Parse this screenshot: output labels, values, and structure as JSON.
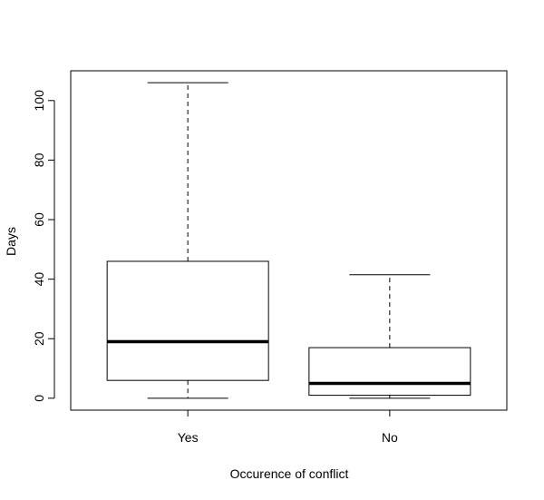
{
  "chart_data": {
    "type": "boxplot",
    "title": "",
    "xlabel": "Occurence of conflict",
    "ylabel": "Days",
    "categories": [
      "Yes",
      "No"
    ],
    "ylim": [
      -4,
      110
    ],
    "yticks": [
      0,
      20,
      40,
      60,
      80,
      100
    ],
    "boxes": [
      {
        "category": "Yes",
        "min": 0,
        "q1": 6,
        "median": 19,
        "q3": 46,
        "max": 106
      },
      {
        "category": "No",
        "min": 0,
        "q1": 1,
        "median": 5,
        "q3": 17,
        "max": 41.5
      }
    ],
    "grid": false,
    "legend": "none"
  }
}
